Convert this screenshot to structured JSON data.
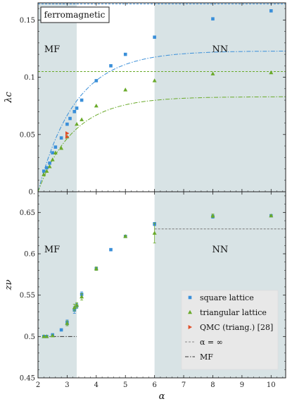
{
  "chart_data": [
    {
      "type": "scatter",
      "panel": "top",
      "title": "ferromagnetic",
      "xlabel": "",
      "ylabel": "λc",
      "xlim": [
        2,
        10.5
      ],
      "ylim": [
        0,
        0.165
      ],
      "yticks": [
        0,
        0.05,
        0.1,
        0.15
      ],
      "ytick_labels": [
        "0.",
        "0.05",
        "0.1",
        "0.15"
      ],
      "regions": [
        {
          "label": "MF",
          "x_range": [
            2,
            3.33
          ]
        },
        {
          "label": "NN",
          "x_range": [
            6,
            10.5
          ]
        }
      ],
      "series": [
        {
          "name": "square lattice",
          "marker": "square",
          "color": "#3a8fd9",
          "x": [
            2.2,
            2.3,
            2.4,
            2.5,
            2.6,
            2.8,
            3.0,
            3.1,
            3.25,
            3.33,
            3.5,
            4.0,
            4.5,
            5.0,
            6.0,
            8.0,
            10.0
          ],
          "y": [
            0.018,
            0.021,
            0.025,
            0.034,
            0.039,
            0.047,
            0.059,
            0.064,
            0.07,
            0.073,
            0.08,
            0.097,
            0.11,
            0.12,
            0.135,
            0.151,
            0.158
          ]
        },
        {
          "name": "triangular lattice",
          "marker": "triangle",
          "color": "#6aaa2a",
          "x": [
            2.2,
            2.3,
            2.4,
            2.5,
            2.6,
            2.8,
            3.0,
            3.33,
            3.5,
            4.0,
            5.0,
            6.0,
            8.0,
            10.0
          ],
          "y": [
            0.015,
            0.018,
            0.022,
            0.028,
            0.034,
            0.038,
            0.048,
            0.059,
            0.063,
            0.075,
            0.089,
            0.097,
            0.103,
            0.104
          ]
        },
        {
          "name": "QMC (triang.) [28]",
          "marker": "triangle-right",
          "color": "#e0502a",
          "x": [
            3.0,
            3.0
          ],
          "y": [
            0.051,
            0.048
          ]
        }
      ],
      "reference_lines": [
        {
          "label": "α = ∞",
          "style": "dashed",
          "color": "#3a8fd9",
          "y": 0.164
        },
        {
          "label": "α = ∞",
          "style": "dashed",
          "color": "#6aaa2a",
          "y": 0.105
        }
      ],
      "mf_curves": [
        {
          "label": "MF",
          "style": "dash-dot",
          "color": "#3a8fd9",
          "asymptote": 0.123,
          "rate": 0.78
        },
        {
          "label": "MF",
          "style": "dash-dot",
          "color": "#6aaa2a",
          "asymptote": 0.083,
          "rate": 0.82
        }
      ]
    },
    {
      "type": "scatter",
      "panel": "bottom",
      "xlabel": "α",
      "ylabel": "zν",
      "xlim": [
        2,
        10.5
      ],
      "ylim": [
        0.45,
        0.675
      ],
      "xticks": [
        2,
        3,
        4,
        5,
        6,
        7,
        8,
        9,
        10
      ],
      "xtick_labels": [
        "2",
        "3",
        "4",
        "5",
        "6",
        "7",
        "8",
        "9",
        "10"
      ],
      "yticks": [
        0.45,
        0.5,
        0.55,
        0.6,
        0.65
      ],
      "ytick_labels": [
        "0.45",
        "0.5",
        "0.55",
        "0.6",
        "0.65"
      ],
      "regions": [
        {
          "label": "MF",
          "x_range": [
            2,
            3.33
          ]
        },
        {
          "label": "NN",
          "x_range": [
            6,
            10.5
          ]
        }
      ],
      "series": [
        {
          "name": "square lattice",
          "marker": "square",
          "color": "#3a8fd9",
          "x": [
            2.2,
            2.3,
            2.5,
            2.8,
            3.0,
            3.25,
            3.33,
            3.5,
            4.0,
            4.5,
            5.0,
            6.0,
            8.0,
            10.0
          ],
          "y": [
            0.5,
            0.5,
            0.502,
            0.508,
            0.517,
            0.532,
            0.537,
            0.551,
            0.582,
            0.605,
            0.621,
            0.636,
            0.645,
            0.646
          ],
          "yerr": [
            0,
            0,
            0,
            0,
            0.003,
            0.004,
            0.003,
            0.003,
            0.002,
            0.001,
            0.001,
            0.002,
            0.002,
            0.001
          ]
        },
        {
          "name": "triangular lattice",
          "marker": "triangle",
          "color": "#6aaa2a",
          "x": [
            2.2,
            2.3,
            2.5,
            3.0,
            3.25,
            3.33,
            3.5,
            4.0,
            5.0,
            6.0,
            8.0,
            10.0
          ],
          "y": [
            0.5,
            0.5,
            0.501,
            0.516,
            0.535,
            0.538,
            0.548,
            0.582,
            0.621,
            0.625,
            0.646,
            0.646
          ],
          "yerr": [
            0,
            0,
            0,
            0.003,
            0.004,
            0.003,
            0.004,
            0.002,
            0.001,
            0.012,
            0.002,
            0.001
          ]
        }
      ],
      "reference_lines": [
        {
          "label": "α = ∞",
          "style": "dashed",
          "color": "#777777",
          "y": 0.63,
          "x_range": [
            6,
            10.5
          ]
        },
        {
          "label": "MF",
          "style": "dash-dot",
          "color": "#333333",
          "y": 0.5,
          "x_range": [
            2.2,
            3.33
          ]
        }
      ],
      "legend": {
        "placement": "bottom-right",
        "entries": [
          {
            "label": "square lattice",
            "marker": "square",
            "color": "#3a8fd9"
          },
          {
            "label": "triangular lattice",
            "marker": "triangle",
            "color": "#6aaa2a"
          },
          {
            "label": "QMC (triang.) [28]",
            "marker": "triangle-right",
            "color": "#e0502a"
          },
          {
            "label": "α = ∞",
            "line": "dashed",
            "color": "#888888"
          },
          {
            "label": "MF",
            "line": "dash-dot",
            "color": "#333333"
          }
        ]
      }
    }
  ]
}
